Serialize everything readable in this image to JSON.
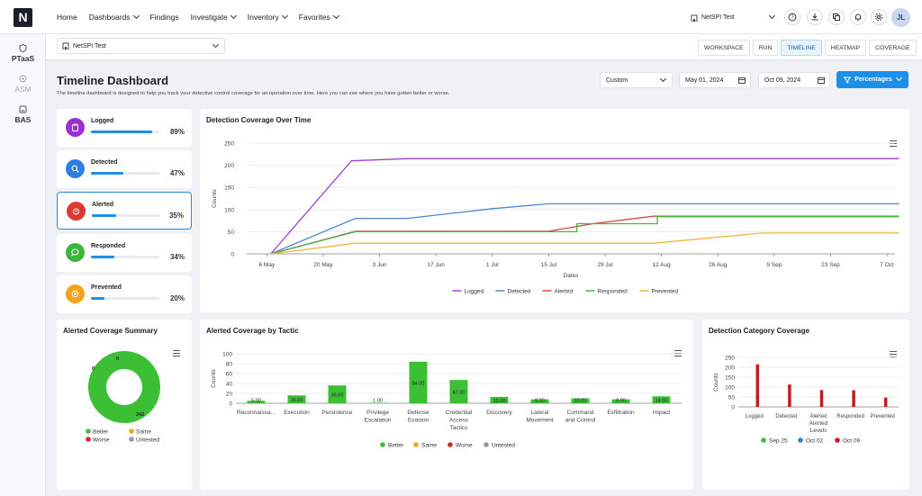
{
  "app": {
    "logo": "N"
  },
  "nav": {
    "home": "Home",
    "dashboards": "Dashboards",
    "findings": "Findings",
    "investigate": "Investigate",
    "inventory": "Inventory",
    "favorites": "Favorites"
  },
  "workspace_select": {
    "value": "NetSPI Test"
  },
  "user": {
    "initials": "JL"
  },
  "sidebar": {
    "items": [
      {
        "label": "PTaaS"
      },
      {
        "label": "ASM"
      },
      {
        "label": "BAS"
      }
    ]
  },
  "operation_select": {
    "value": "NetSPI Test"
  },
  "view_tabs": [
    {
      "label": "WORKSPACE"
    },
    {
      "label": "RUN"
    },
    {
      "label": "TIMELINE"
    },
    {
      "label": "HEATMAP"
    },
    {
      "label": "COVERAGE"
    }
  ],
  "page": {
    "title": "Timeline Dashboard",
    "description": "The timeline dashboard is designed to help you track your detective control coverage for an operation over time. Here you can see where you have gotten better or worse."
  },
  "filters": {
    "range": "Custom",
    "start_date": "May 01, 2024",
    "end_date": "Oct 09, 2024",
    "mode_button": "Percentages"
  },
  "metrics": [
    {
      "label": "Logged",
      "percent": "89%",
      "value": 89,
      "color": "#9b2fd6"
    },
    {
      "label": "Detected",
      "percent": "47%",
      "value": 47,
      "color": "#2f7fe0"
    },
    {
      "label": "Alerted",
      "percent": "35%",
      "value": 35,
      "color": "#d93a32"
    },
    {
      "label": "Responded",
      "percent": "34%",
      "value": 34,
      "color": "#3cb53c"
    },
    {
      "label": "Prevented",
      "percent": "20%",
      "value": 20,
      "color": "#f0a51d"
    }
  ],
  "colors": {
    "accent": "#1c8fe8",
    "better": "#3cbf35",
    "same": "#f0a51d",
    "worse": "#d12a2a",
    "untested": "#999999"
  },
  "chart_data": [
    {
      "title": "Detection Coverage Over Time",
      "type": "line",
      "xlabel": "Dates",
      "ylabel": "Counts",
      "ylim": [
        0,
        250
      ],
      "yticks": [
        0,
        50,
        100,
        150,
        200,
        250
      ],
      "x_start": "2024-05-01",
      "x_end": "2024-10-09",
      "xtick_labels": [
        "6 May",
        "20 May",
        "3 Jun",
        "17 Jun",
        "1 Jul",
        "15 Jul",
        "29 Jul",
        "12 Aug",
        "26 Aug",
        "9 Sep",
        "23 Sep",
        "7 Oct"
      ],
      "xtick_days": [
        5,
        19,
        33,
        47,
        61,
        75,
        89,
        103,
        117,
        131,
        145,
        159
      ],
      "series": [
        {
          "name": "Logged",
          "color": "#a33fd0",
          "points": [
            [
              6,
              0
            ],
            [
              26,
              210
            ],
            [
              40,
              215
            ],
            [
              162,
              215
            ]
          ]
        },
        {
          "name": "Detected",
          "color": "#4a86d0",
          "points": [
            [
              6,
              0
            ],
            [
              27,
              80
            ],
            [
              40,
              80
            ],
            [
              61,
              102
            ],
            [
              75,
              113
            ],
            [
              162,
              113
            ]
          ]
        },
        {
          "name": "Alerted",
          "color": "#d24a3e",
          "points": [
            [
              6,
              0
            ],
            [
              27,
              51
            ],
            [
              75,
              51
            ],
            [
              86,
              68
            ],
            [
              101,
              85
            ],
            [
              162,
              85
            ]
          ]
        },
        {
          "name": "Responded",
          "color": "#45b34a",
          "points": [
            [
              6,
              0
            ],
            [
              27,
              50
            ],
            [
              82,
              50
            ],
            [
              82,
              68
            ],
            [
              102,
              68
            ],
            [
              102,
              84
            ],
            [
              162,
              84
            ]
          ]
        },
        {
          "name": "Prevented",
          "color": "#f0b43a",
          "points": [
            [
              6,
              0
            ],
            [
              27,
              24
            ],
            [
              101,
              24
            ],
            [
              128,
              47
            ],
            [
              162,
              47
            ]
          ]
        }
      ]
    },
    {
      "title": "Alerted Coverage Summary",
      "type": "pie",
      "slices": [
        {
          "name": "Better",
          "value": 242,
          "color": "#3cbf35"
        },
        {
          "name": "Same",
          "value": 0,
          "color": "#f0a51d"
        },
        {
          "name": "Worse",
          "value": 0,
          "color": "#d12a2a"
        },
        {
          "name": "Untested",
          "value": 0,
          "color": "#999999"
        }
      ],
      "labels": [
        "0",
        "0",
        "242"
      ]
    },
    {
      "title": "Alerted Coverage by Tactic",
      "type": "bar",
      "ylabel": "Counts",
      "ylim": [
        0,
        100
      ],
      "yticks": [
        0,
        20,
        40,
        60,
        80,
        100
      ],
      "categories": [
        "Reconnaissa...",
        "Execution",
        "Persistence",
        "Privilege Escalation",
        "Defense Evasion",
        "Credential Access Tactics",
        "Discovery",
        "Lateral Movement",
        "Command and Control",
        "Exfiltration",
        "Impact"
      ],
      "values": [
        5,
        16,
        36,
        1,
        84,
        47,
        13,
        8,
        10,
        8,
        14
      ],
      "value_labels": [
        "5.00",
        "16.00",
        "36.00",
        "1.00",
        "84.00",
        "47.00",
        "13.00",
        "8.00",
        "10.00",
        "8.00",
        "14.00"
      ],
      "legend": [
        "Better",
        "Same",
        "Worse",
        "Untested"
      ]
    },
    {
      "title": "Detection Category Coverage",
      "type": "bar",
      "xlabel": "Alerted Levels",
      "ylabel": "Counts",
      "ylim": [
        0,
        250
      ],
      "yticks": [
        0,
        50,
        100,
        150,
        200,
        250
      ],
      "categories": [
        "Logged",
        "Detected",
        "Alerted",
        "Responded",
        "Prevented"
      ],
      "series": [
        {
          "name": "Sep 25",
          "color": "#3cbf35",
          "values": [
            0,
            0,
            0,
            0,
            0
          ]
        },
        {
          "name": "Oct 02",
          "color": "#2f7fe0",
          "values": [
            0,
            0,
            0,
            0,
            0
          ]
        },
        {
          "name": "Oct 09",
          "color": "#c11f1f",
          "values": [
            215,
            113,
            85,
            84,
            47
          ]
        }
      ]
    }
  ]
}
